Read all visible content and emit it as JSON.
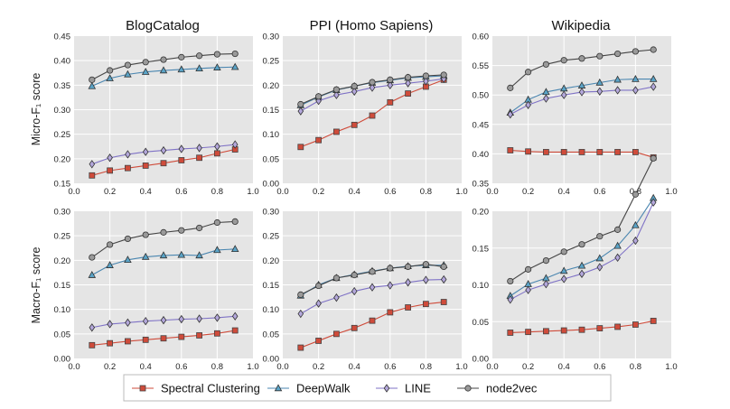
{
  "figure": {
    "row_ylabels": [
      "Micro-F₁ score",
      "Macro-F₁ score"
    ]
  },
  "legend": [
    {
      "name": "Spectral Clustering",
      "marker": "square"
    },
    {
      "name": "DeepWalk",
      "marker": "triangle"
    },
    {
      "name": "LINE",
      "marker": "diamond"
    },
    {
      "name": "node2vec",
      "marker": "circle"
    }
  ],
  "series_style": {
    "Spectral Clustering": {
      "fill": "#cf4b3a",
      "line": "#cf4b3a",
      "edge": "#444444"
    },
    "DeepWalk": {
      "fill": "#5aa4c8",
      "line": "#4a86b0",
      "edge": "#333333"
    },
    "LINE": {
      "fill": "#b4a8dc",
      "line": "#7f72c6",
      "edge": "#333333"
    },
    "node2vec": {
      "fill": "#9a9a9a",
      "line": "#444444",
      "edge": "#333333"
    }
  },
  "colors": {
    "panel_background": "#e5e5e5",
    "grid": "#ffffff"
  },
  "chart_data": [
    {
      "type": "line",
      "title": "BlogCatalog",
      "ylabel": "Micro-F₁ score",
      "xlabel": "",
      "x": [
        0.1,
        0.2,
        0.3,
        0.4,
        0.5,
        0.6,
        0.7,
        0.8,
        0.9
      ],
      "xlim": [
        0.0,
        1.0
      ],
      "ylim": [
        0.15,
        0.45
      ],
      "yticks": [
        "0.15",
        "0.20",
        "0.25",
        "0.30",
        "0.35",
        "0.40",
        "0.45"
      ],
      "xticks": [
        "0.0",
        "0.2",
        "0.4",
        "0.6",
        "0.8",
        "1.0"
      ],
      "grid": true,
      "series": [
        {
          "name": "Spectral Clustering",
          "values": [
            0.166,
            0.176,
            0.181,
            0.186,
            0.191,
            0.197,
            0.202,
            0.211,
            0.219
          ]
        },
        {
          "name": "DeepWalk",
          "values": [
            0.348,
            0.364,
            0.372,
            0.377,
            0.38,
            0.382,
            0.384,
            0.386,
            0.387
          ]
        },
        {
          "name": "LINE",
          "values": [
            0.189,
            0.202,
            0.209,
            0.214,
            0.217,
            0.22,
            0.222,
            0.225,
            0.229
          ]
        },
        {
          "name": "node2vec",
          "values": [
            0.361,
            0.38,
            0.391,
            0.397,
            0.402,
            0.407,
            0.41,
            0.413,
            0.414
          ]
        }
      ]
    },
    {
      "type": "line",
      "title": "PPI (Homo Sapiens)",
      "ylabel": "",
      "xlabel": "",
      "x": [
        0.1,
        0.2,
        0.3,
        0.4,
        0.5,
        0.6,
        0.7,
        0.8,
        0.9
      ],
      "xlim": [
        0.0,
        1.0
      ],
      "ylim": [
        0.0,
        0.3
      ],
      "yticks": [
        "0.00",
        "0.05",
        "0.10",
        "0.15",
        "0.20",
        "0.25",
        "0.30"
      ],
      "xticks": [
        "0.0",
        "0.2",
        "0.4",
        "0.6",
        "0.8",
        "1.0"
      ],
      "grid": true,
      "series": [
        {
          "name": "Spectral Clustering",
          "values": [
            0.074,
            0.088,
            0.105,
            0.119,
            0.138,
            0.165,
            0.183,
            0.197,
            0.211
          ]
        },
        {
          "name": "DeepWalk",
          "values": [
            0.159,
            0.176,
            0.19,
            0.198,
            0.205,
            0.21,
            0.215,
            0.217,
            0.219
          ]
        },
        {
          "name": "LINE",
          "values": [
            0.147,
            0.168,
            0.18,
            0.187,
            0.195,
            0.2,
            0.204,
            0.208,
            0.213
          ]
        },
        {
          "name": "node2vec",
          "values": [
            0.161,
            0.177,
            0.191,
            0.198,
            0.206,
            0.211,
            0.216,
            0.219,
            0.221
          ]
        }
      ]
    },
    {
      "type": "line",
      "title": "Wikipedia",
      "ylabel": "",
      "xlabel": "",
      "x": [
        0.1,
        0.2,
        0.3,
        0.4,
        0.5,
        0.6,
        0.7,
        0.8,
        0.9
      ],
      "xlim": [
        0.0,
        1.0
      ],
      "ylim": [
        0.35,
        0.6
      ],
      "yticks": [
        "0.35",
        "0.40",
        "0.45",
        "0.50",
        "0.55",
        "0.60"
      ],
      "xticks": [
        "0.0",
        "0.2",
        "0.4",
        "0.6",
        "0.8",
        "1.0"
      ],
      "grid": true,
      "series": [
        {
          "name": "Spectral Clustering",
          "values": [
            0.406,
            0.404,
            0.403,
            0.403,
            0.403,
            0.403,
            0.403,
            0.403,
            0.394
          ]
        },
        {
          "name": "DeepWalk",
          "values": [
            0.47,
            0.492,
            0.505,
            0.511,
            0.516,
            0.521,
            0.526,
            0.527,
            0.527
          ]
        },
        {
          "name": "LINE",
          "values": [
            0.467,
            0.483,
            0.494,
            0.5,
            0.505,
            0.506,
            0.508,
            0.508,
            0.514
          ]
        },
        {
          "name": "node2vec",
          "values": [
            0.512,
            0.539,
            0.552,
            0.559,
            0.562,
            0.566,
            0.57,
            0.574,
            0.577
          ]
        }
      ]
    },
    {
      "type": "line",
      "title": "",
      "ylabel": "Macro-F₁ score",
      "xlabel": "",
      "x": [
        0.1,
        0.2,
        0.3,
        0.4,
        0.5,
        0.6,
        0.7,
        0.8,
        0.9
      ],
      "xlim": [
        0.0,
        1.0
      ],
      "ylim": [
        0.0,
        0.3
      ],
      "yticks": [
        "0.00",
        "0.05",
        "0.10",
        "0.15",
        "0.20",
        "0.25",
        "0.30"
      ],
      "xticks": [
        "0.0",
        "0.2",
        "0.4",
        "0.6",
        "0.8",
        "1.0"
      ],
      "grid": true,
      "series": [
        {
          "name": "Spectral Clustering",
          "values": [
            0.027,
            0.031,
            0.035,
            0.038,
            0.041,
            0.044,
            0.047,
            0.051,
            0.057
          ]
        },
        {
          "name": "DeepWalk",
          "values": [
            0.17,
            0.19,
            0.201,
            0.207,
            0.21,
            0.211,
            0.21,
            0.221,
            0.223
          ]
        },
        {
          "name": "LINE",
          "values": [
            0.063,
            0.07,
            0.073,
            0.076,
            0.078,
            0.08,
            0.081,
            0.083,
            0.086
          ]
        },
        {
          "name": "node2vec",
          "values": [
            0.206,
            0.232,
            0.244,
            0.252,
            0.257,
            0.261,
            0.266,
            0.277,
            0.279
          ]
        }
      ]
    },
    {
      "type": "line",
      "title": "",
      "ylabel": "",
      "xlabel": "",
      "x": [
        0.1,
        0.2,
        0.3,
        0.4,
        0.5,
        0.6,
        0.7,
        0.8,
        0.9
      ],
      "xlim": [
        0.0,
        1.0
      ],
      "ylim": [
        0.0,
        0.3
      ],
      "yticks": [
        "0.00",
        "0.05",
        "0.10",
        "0.15",
        "0.20",
        "0.25",
        "0.30"
      ],
      "xticks": [
        "0.0",
        "0.2",
        "0.4",
        "0.6",
        "0.8",
        "1.0"
      ],
      "grid": true,
      "series": [
        {
          "name": "Spectral Clustering",
          "values": [
            0.022,
            0.036,
            0.05,
            0.062,
            0.077,
            0.094,
            0.104,
            0.111,
            0.115
          ]
        },
        {
          "name": "DeepWalk",
          "values": [
            0.128,
            0.15,
            0.164,
            0.171,
            0.178,
            0.184,
            0.188,
            0.19,
            0.19
          ]
        },
        {
          "name": "LINE",
          "values": [
            0.091,
            0.112,
            0.124,
            0.137,
            0.145,
            0.149,
            0.155,
            0.16,
            0.161
          ]
        },
        {
          "name": "node2vec",
          "values": [
            0.13,
            0.148,
            0.164,
            0.17,
            0.177,
            0.184,
            0.187,
            0.192,
            0.187
          ]
        }
      ]
    },
    {
      "type": "line",
      "title": "",
      "ylabel": "",
      "xlabel": "",
      "x": [
        0.1,
        0.2,
        0.3,
        0.4,
        0.5,
        0.6,
        0.7,
        0.8,
        0.9
      ],
      "xlim": [
        0.0,
        1.0
      ],
      "ylim": [
        0.0,
        0.2
      ],
      "yticks": [
        "0.00",
        "0.05",
        "0.10",
        "0.15",
        "0.20"
      ],
      "xticks": [
        "0.0",
        "0.2",
        "0.4",
        "0.6",
        "0.8",
        "1.0"
      ],
      "grid": true,
      "series": [
        {
          "name": "Spectral Clustering",
          "values": [
            0.035,
            0.036,
            0.037,
            0.038,
            0.039,
            0.041,
            0.043,
            0.046,
            0.051
          ]
        },
        {
          "name": "DeepWalk",
          "values": [
            0.085,
            0.101,
            0.109,
            0.119,
            0.126,
            0.136,
            0.153,
            0.181,
            0.218
          ]
        },
        {
          "name": "LINE",
          "values": [
            0.08,
            0.093,
            0.101,
            0.108,
            0.115,
            0.124,
            0.137,
            0.16,
            0.212
          ]
        },
        {
          "name": "node2vec",
          "values": [
            0.105,
            0.121,
            0.133,
            0.145,
            0.155,
            0.166,
            0.175,
            0.223,
            0.272
          ]
        }
      ]
    }
  ]
}
